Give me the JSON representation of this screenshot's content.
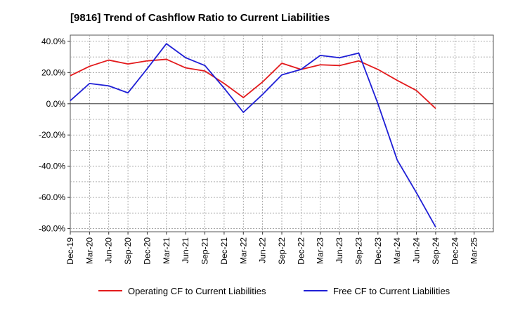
{
  "chart_data": {
    "type": "line",
    "title": "[9816]  Trend of Cashflow Ratio to Current Liabilities",
    "xlabel": "",
    "ylabel": "",
    "x": [
      "Dec-19",
      "Mar-20",
      "Jun-20",
      "Sep-20",
      "Dec-20",
      "Mar-21",
      "Jun-21",
      "Sep-21",
      "Dec-21",
      "Mar-22",
      "Jun-22",
      "Sep-22",
      "Dec-22",
      "Mar-23",
      "Jun-23",
      "Sep-23",
      "Dec-23",
      "Mar-24",
      "Jun-24",
      "Sep-24",
      "Dec-24",
      "Mar-25"
    ],
    "y_ticks": [
      "40.0%",
      "20.0%",
      "0.0%",
      "-20.0%",
      "-40.0%",
      "-60.0%",
      "-80.0%"
    ],
    "ylim": [
      -82,
      44
    ],
    "grid": true,
    "legend_position": "bottom",
    "series": [
      {
        "name": "Operating CF to Current Liabilities",
        "color": "#e31a1c",
        "values": [
          18.0,
          24.0,
          28.0,
          25.5,
          27.5,
          28.5,
          23.0,
          21.0,
          13.0,
          4.0,
          14.0,
          26.0,
          22.0,
          25.0,
          24.5,
          27.5,
          22.0,
          15.0,
          8.5,
          -3.0,
          null,
          null
        ]
      },
      {
        "name": "Free CF to Current Liabilities",
        "color": "#1f1fd6",
        "values": [
          2.0,
          13.0,
          11.5,
          7.0,
          22.5,
          38.5,
          29.5,
          24.5,
          10.0,
          -5.5,
          6.0,
          18.5,
          22.0,
          31.0,
          29.5,
          32.5,
          0.0,
          -36.0,
          -57.0,
          -79.0,
          null,
          null
        ]
      }
    ]
  }
}
